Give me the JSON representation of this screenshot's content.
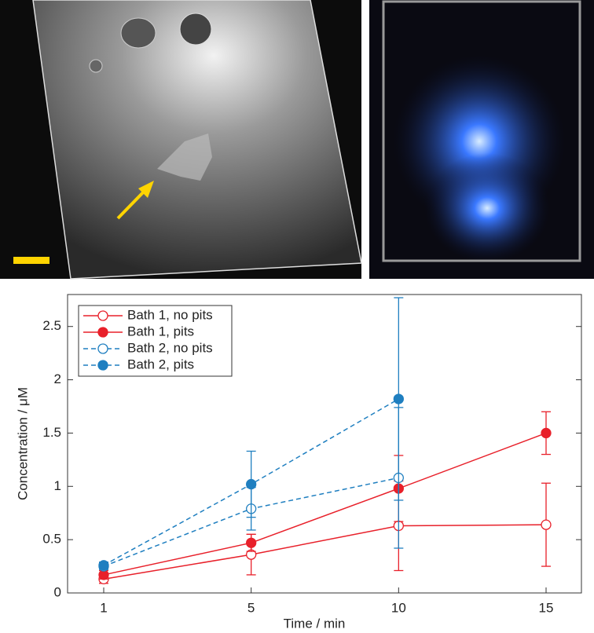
{
  "chart_data": {
    "type": "line",
    "xlabel": "Time / min",
    "ylabel": "Concentration / μM",
    "categories": [
      "1",
      "5",
      "10",
      "15"
    ],
    "series": [
      {
        "name": "Bath 1, no pits",
        "color": "#e8202a",
        "dashed": false,
        "marker": "open",
        "values": [
          0.13,
          0.36,
          0.63,
          0.64
        ],
        "errors": [
          0.04,
          0.19,
          0.42,
          0.39
        ]
      },
      {
        "name": "Bath 1, pits",
        "color": "#e8202a",
        "dashed": false,
        "marker": "filled",
        "values": [
          0.17,
          0.47,
          0.98,
          1.5
        ],
        "errors": [
          0.04,
          0.08,
          0.31,
          0.2
        ]
      },
      {
        "name": "Bath 2, no pits",
        "color": "#1f7fc0",
        "dashed": true,
        "marker": "open",
        "values": [
          0.25,
          0.79,
          1.08,
          null
        ],
        "errors": [
          0.03,
          0.2,
          0.66,
          null
        ]
      },
      {
        "name": "Bath 2, pits",
        "color": "#1f7fc0",
        "dashed": true,
        "marker": "filled",
        "values": [
          0.26,
          1.02,
          1.82,
          null
        ],
        "errors": [
          0.03,
          0.31,
          0.95,
          null
        ]
      }
    ],
    "ylim": [
      0,
      2.8
    ],
    "yticks": [
      0,
      0.5,
      1,
      1.5,
      2,
      2.5
    ],
    "legend": "upper left"
  }
}
